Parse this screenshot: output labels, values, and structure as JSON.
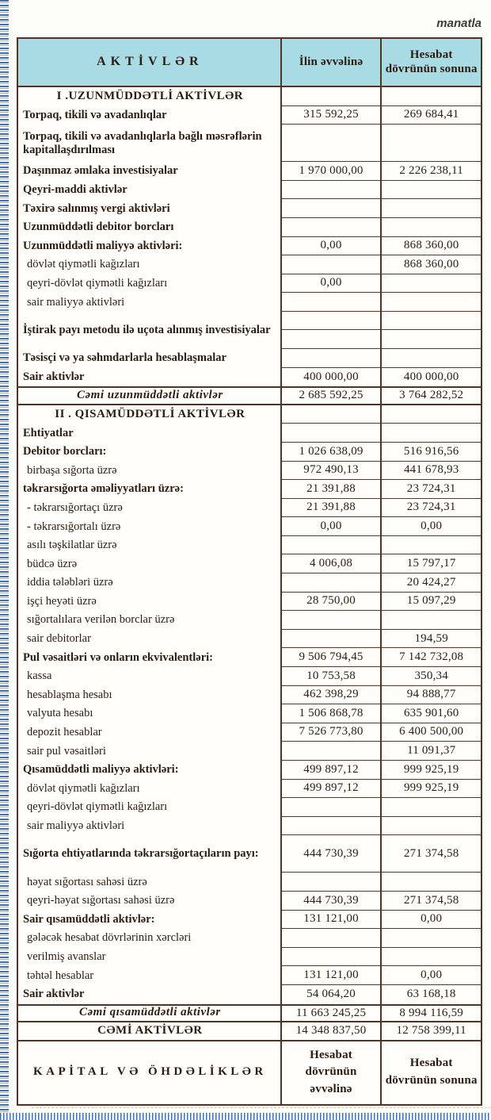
{
  "page": {
    "currency_note": "manatla"
  },
  "table": {
    "header": {
      "col1": "AKTİVLƏR",
      "col2": "İlin əvvəlinə",
      "col3": "Hesabat dövrünün sonuna"
    },
    "columns": [
      "AKTİVLƏR",
      "İlin əvvəlinə",
      "Hesabat dövrünün sonuna"
    ],
    "rows": [
      {
        "label": "I .UZUNMÜDDƏTLİ AKTİVLƏR",
        "v1": "",
        "v2": "",
        "style": "section"
      },
      {
        "label": "Torpaq, tikili və avadanlıqlar",
        "v1": "315 592,25",
        "v2": "269 684,41",
        "style": "b"
      },
      {
        "label": "Torpaq, tikili və avadanlıqlarla bağlı məsrəflərin kapitallaşdırılması",
        "v1": "",
        "v2": "",
        "style": "b",
        "tall": true
      },
      {
        "label": "Daşınmaz əmlaka investisiyalar",
        "v1": "1 970 000,00",
        "v2": "2 226 238,11",
        "style": "b"
      },
      {
        "label": "Qeyri-maddi aktivlər",
        "v1": "",
        "v2": "",
        "style": "b"
      },
      {
        "label": "Təxirə salınmış vergi aktivləri",
        "v1": "",
        "v2": "",
        "style": "b"
      },
      {
        "label": "Uzunmüddətli debitor borcları",
        "v1": "",
        "v2": "",
        "style": "b"
      },
      {
        "label": "Uzunmüddətli maliyyə aktivləri:",
        "v1": "0,00",
        "v2": "868 360,00",
        "style": "b"
      },
      {
        "label": "dövlət qiymətli kağızları",
        "v1": "",
        "v2": "868 360,00",
        "style": "n"
      },
      {
        "label": "qeyri-dövlət qiymətli kağızları",
        "v1": "0,00",
        "v2": "",
        "style": "n"
      },
      {
        "label": "sair maliyyə aktivləri",
        "v1": "",
        "v2": "",
        "style": "n"
      },
      {
        "label": "İştirak payı metodu ilə uçota alınmış investisiyalar",
        "v1": "",
        "v2": "",
        "style": "b",
        "tall": true,
        "split": true
      },
      {
        "label": "Təsisçi və ya səhmdarlarla hesablaşmalar",
        "v1": "",
        "v2": "",
        "style": "b"
      },
      {
        "label": "Sair aktivlər",
        "v1": "400 000,00",
        "v2": "400 000,00",
        "style": "b"
      },
      {
        "label": "Cəmi uzunmüddətli aktivlər",
        "v1": "2 685 592,25",
        "v2": "3 764 282,52",
        "style": "total"
      },
      {
        "label": "II . QISAMÜDDƏTLİ AKTİVLƏR",
        "v1": "",
        "v2": "",
        "style": "section"
      },
      {
        "label": "Ehtiyatlar",
        "v1": "",
        "v2": "",
        "style": "b"
      },
      {
        "label": "Debitor borcları:",
        "v1": "1 026 638,09",
        "v2": "516 916,56",
        "style": "b"
      },
      {
        "label": "birbaşa sığorta üzrə",
        "v1": "972 490,13",
        "v2": "441 678,93",
        "style": "n"
      },
      {
        "label": "təkrarsığorta əməliyyatları üzrə:",
        "v1": "21 391,88",
        "v2": "23 724,31",
        "style": "b"
      },
      {
        "label": "- təkrarsığortaçı üzrə",
        "v1": "21 391,88",
        "v2": "23 724,31",
        "style": "n"
      },
      {
        "label": "- təkrarsığortalı üzrə",
        "v1": "0,00",
        "v2": "0,00",
        "style": "n"
      },
      {
        "label": "asılı təşkilatlar üzrə",
        "v1": "",
        "v2": "",
        "style": "n"
      },
      {
        "label": "büdcə üzrə",
        "v1": "4 006,08",
        "v2": "15 797,17",
        "style": "n"
      },
      {
        "label": "iddia tələbləri üzrə",
        "v1": "",
        "v2": "20 424,27",
        "style": "n"
      },
      {
        "label": "işçi heyəti üzrə",
        "v1": "28 750,00",
        "v2": "15 097,29",
        "style": "n"
      },
      {
        "label": "sığortalılara verilən borclar üzrə",
        "v1": "",
        "v2": "",
        "style": "n"
      },
      {
        "label": "sair debitorlar",
        "v1": "",
        "v2": "194,59",
        "style": "n"
      },
      {
        "label": "Pul vəsaitləri və onların ekvivalentləri:",
        "v1": "9 506 794,45",
        "v2": "7 142 732,08",
        "style": "b"
      },
      {
        "label": "kassa",
        "v1": "10 753,58",
        "v2": "350,34",
        "style": "n"
      },
      {
        "label": "hesablaşma hesabı",
        "v1": "462 398,29",
        "v2": "94 888,77",
        "style": "n"
      },
      {
        "label": "valyuta hesabı",
        "v1": "1 506 868,78",
        "v2": "635 901,60",
        "style": "n"
      },
      {
        "label": "depozit hesablar",
        "v1": "7 526 773,80",
        "v2": "6 400 500,00",
        "style": "n"
      },
      {
        "label": "sair pul vəsaitləri",
        "v1": "",
        "v2": "11 091,37",
        "style": "n"
      },
      {
        "label": "Qısamüddətli maliyyə aktivləri:",
        "v1": "499 897,12",
        "v2": "999 925,19",
        "style": "b"
      },
      {
        "label": "dövlət qiymətli kağızları",
        "v1": "499 897,12",
        "v2": "999 925,19",
        "style": "n"
      },
      {
        "label": "qeyri-dövlət qiymətli kağızları",
        "v1": "",
        "v2": "",
        "style": "n"
      },
      {
        "label": "sair maliyyə aktivləri",
        "v1": "",
        "v2": "",
        "style": "n"
      },
      {
        "label": "Sığorta ehtiyatlarında təkrarsığortaçıların payı:",
        "v1": "444 730,39",
        "v2": "271 374,58",
        "style": "b",
        "tall": true
      },
      {
        "label": "həyat sığortası sahəsi üzrə",
        "v1": "",
        "v2": "",
        "style": "n"
      },
      {
        "label": "qeyri-həyat sığortası sahəsi üzrə",
        "v1": "444 730,39",
        "v2": "271 374,58",
        "style": "n"
      },
      {
        "label": "Sair qısamüddətli aktivlər:",
        "v1": "131 121,00",
        "v2": "0,00",
        "style": "b"
      },
      {
        "label": "gələcək hesabat dövrlərinin xərcləri",
        "v1": "",
        "v2": "",
        "style": "n"
      },
      {
        "label": "verilmiş avanslar",
        "v1": "",
        "v2": "",
        "style": "n"
      },
      {
        "label": "təhtəl hesablar",
        "v1": "131 121,00",
        "v2": "0,00",
        "style": "n"
      },
      {
        "label": "Sair aktivlər",
        "v1": "54 064,20",
        "v2": "63 168,18",
        "style": "b"
      },
      {
        "label": "Cəmi qısamüddətli aktivlər",
        "v1": "11 663 245,25",
        "v2": "8 994 116,59",
        "style": "total"
      },
      {
        "label": "CƏMİ AKTİVLƏR",
        "v1": "14 348 837,50",
        "v2": "12 758 399,11",
        "style": "grand"
      },
      {
        "label": "KAPİTAL VƏ ÖHDƏLİKLƏR",
        "v1": "Hesabat dövrünün əvvəlinə",
        "v2": "Hesabat dövrünün sonuna",
        "style": "kapital"
      }
    ]
  }
}
